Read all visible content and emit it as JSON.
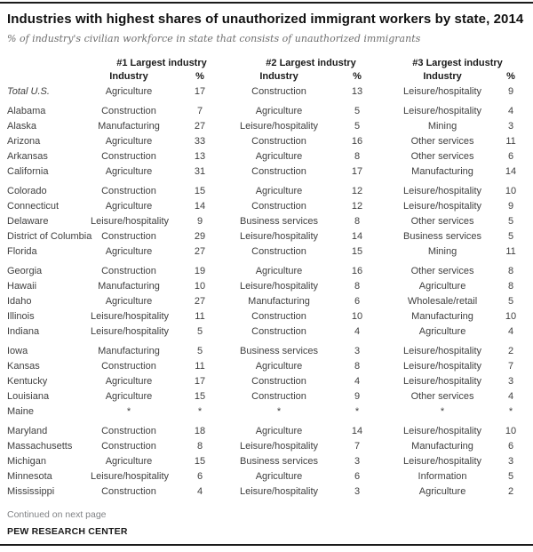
{
  "header": {
    "title": "Industries with highest shares of unauthorized immigrant workers by state, 2014",
    "subtitle": "% of industry's civilian workforce in state that consists of unauthorized immigrants"
  },
  "table": {
    "group_headers": [
      "#1 Largest industry",
      "#2 Largest industry",
      "#3 Largest industry"
    ],
    "subheaders": {
      "industry": "Industry",
      "pct": "%"
    },
    "row_groups": [
      {
        "rows": [
          {
            "state": "Total U.S.",
            "italic": true,
            "cells": [
              "Agriculture",
              "17",
              "Construction",
              "13",
              "Leisure/hospitality",
              "9"
            ]
          }
        ]
      },
      {
        "rows": [
          {
            "state": "Alabama",
            "cells": [
              "Construction",
              "7",
              "Agriculture",
              "5",
              "Leisure/hospitality",
              "4"
            ]
          },
          {
            "state": "Alaska",
            "cells": [
              "Manufacturing",
              "27",
              "Leisure/hospitality",
              "5",
              "Mining",
              "3"
            ]
          },
          {
            "state": "Arizona",
            "cells": [
              "Agriculture",
              "33",
              "Construction",
              "16",
              "Other services",
              "11"
            ]
          },
          {
            "state": "Arkansas",
            "cells": [
              "Construction",
              "13",
              "Agriculture",
              "8",
              "Other services",
              "6"
            ]
          },
          {
            "state": "California",
            "cells": [
              "Agriculture",
              "31",
              "Construction",
              "17",
              "Manufacturing",
              "14"
            ]
          }
        ]
      },
      {
        "rows": [
          {
            "state": "Colorado",
            "cells": [
              "Construction",
              "15",
              "Agriculture",
              "12",
              "Leisure/hospitality",
              "10"
            ]
          },
          {
            "state": "Connecticut",
            "cells": [
              "Agriculture",
              "14",
              "Construction",
              "12",
              "Leisure/hospitality",
              "9"
            ]
          },
          {
            "state": "Delaware",
            "cells": [
              "Leisure/hospitality",
              "9",
              "Business services",
              "8",
              "Other services",
              "5"
            ]
          },
          {
            "state": "District of Columbia",
            "cells": [
              "Construction",
              "29",
              "Leisure/hospitality",
              "14",
              "Business services",
              "5"
            ]
          },
          {
            "state": "Florida",
            "cells": [
              "Agriculture",
              "27",
              "Construction",
              "15",
              "Mining",
              "11"
            ]
          }
        ]
      },
      {
        "rows": [
          {
            "state": "Georgia",
            "cells": [
              "Construction",
              "19",
              "Agriculture",
              "16",
              "Other services",
              "8"
            ]
          },
          {
            "state": "Hawaii",
            "cells": [
              "Manufacturing",
              "10",
              "Leisure/hospitality",
              "8",
              "Agriculture",
              "8"
            ]
          },
          {
            "state": "Idaho",
            "cells": [
              "Agriculture",
              "27",
              "Manufacturing",
              "6",
              "Wholesale/retail",
              "5"
            ]
          },
          {
            "state": "Illinois",
            "cells": [
              "Leisure/hospitality",
              "11",
              "Construction",
              "10",
              "Manufacturing",
              "10"
            ]
          },
          {
            "state": "Indiana",
            "cells": [
              "Leisure/hospitality",
              "5",
              "Construction",
              "4",
              "Agriculture",
              "4"
            ]
          }
        ]
      },
      {
        "rows": [
          {
            "state": "Iowa",
            "cells": [
              "Manufacturing",
              "5",
              "Business services",
              "3",
              "Leisure/hospitality",
              "2"
            ]
          },
          {
            "state": "Kansas",
            "cells": [
              "Construction",
              "11",
              "Agriculture",
              "8",
              "Leisure/hospitality",
              "7"
            ]
          },
          {
            "state": "Kentucky",
            "cells": [
              "Agriculture",
              "17",
              "Construction",
              "4",
              "Leisure/hospitality",
              "3"
            ]
          },
          {
            "state": "Louisiana",
            "cells": [
              "Agriculture",
              "15",
              "Construction",
              "9",
              "Other services",
              "4"
            ]
          },
          {
            "state": "Maine",
            "cells": [
              "*",
              "*",
              "*",
              "*",
              "*",
              "*"
            ]
          }
        ]
      },
      {
        "rows": [
          {
            "state": "Maryland",
            "cells": [
              "Construction",
              "18",
              "Agriculture",
              "14",
              "Leisure/hospitality",
              "10"
            ]
          },
          {
            "state": "Massachusetts",
            "cells": [
              "Construction",
              "8",
              "Leisure/hospitality",
              "7",
              "Manufacturing",
              "6"
            ]
          },
          {
            "state": "Michigan",
            "cells": [
              "Agriculture",
              "15",
              "Business services",
              "3",
              "Leisure/hospitality",
              "3"
            ]
          },
          {
            "state": "Minnesota",
            "cells": [
              "Leisure/hospitality",
              "6",
              "Agriculture",
              "6",
              "Information",
              "5"
            ]
          },
          {
            "state": "Mississippi",
            "cells": [
              "Construction",
              "4",
              "Leisure/hospitality",
              "3",
              "Agriculture",
              "2"
            ]
          }
        ]
      }
    ]
  },
  "footer": {
    "continued": "Continued on next page",
    "source": "PEW RESEARCH CENTER"
  },
  "colors": {
    "text_dark": "#1a1a1a",
    "text_body": "#3f3f3f",
    "text_muted": "#808285",
    "subtitle_gray": "#6e6e6e",
    "rule": "#1a1a1a"
  }
}
